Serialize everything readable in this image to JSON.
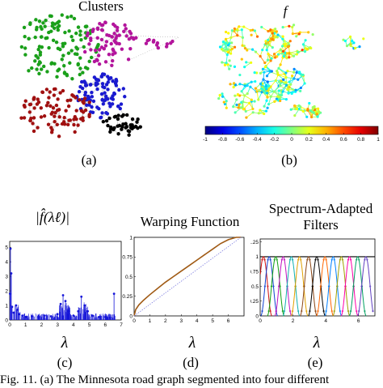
{
  "figure": {
    "panels": [
      {
        "id": "a",
        "title": "Clusters",
        "caption": "(a)"
      },
      {
        "id": "b",
        "title": "f",
        "caption": "(b)",
        "colorbar_ticks": [
          "-1",
          "-0.8",
          "-0.6",
          "-0.4",
          "-0.2",
          "0",
          "0.2",
          "0.4",
          "0.6",
          "0.8",
          "1"
        ]
      },
      {
        "id": "c",
        "title": "|f̂(λℓ)|",
        "caption": "(c)",
        "xlabel": "λ"
      },
      {
        "id": "d",
        "title": "Warping Function",
        "caption": "(d)",
        "xlabel": "λ"
      },
      {
        "id": "e",
        "title_line1": "Spectrum-Adapted",
        "title_line2": "Filters",
        "caption": "(e)",
        "xlabel": "λ"
      }
    ],
    "bottom_text": "Fig. 11. (a) The Minnesota road graph segmented into four different"
  },
  "colors": {
    "cluster_green": "#1aa01a",
    "cluster_magenta": "#b3159c",
    "cluster_blue": "#1a1ad0",
    "cluster_red": "#a01010",
    "cluster_black": "#000000",
    "spectrum_blue": "#1414d8",
    "warp_brown": "#a05a14",
    "warp_dotted": "#8080e0"
  },
  "chart_data": [
    {
      "type": "bar",
      "panel": "c",
      "title": "|f̂(λℓ)|",
      "xlabel": "λ",
      "xlim": [
        0,
        7
      ],
      "ylim": [
        0,
        5.4
      ],
      "xticks": [
        "0",
        "1",
        "2",
        "3",
        "4",
        "5",
        "6",
        "7"
      ],
      "yticks": [
        "0",
        "1",
        "2",
        "3",
        "4",
        "5"
      ],
      "stems": [
        {
          "x": 0.02,
          "y": 1.8
        },
        {
          "x": 0.05,
          "y": 4.9
        },
        {
          "x": 0.1,
          "y": 3.2
        },
        {
          "x": 0.15,
          "y": 0.9
        },
        {
          "x": 0.25,
          "y": 0.5
        },
        {
          "x": 0.4,
          "y": 1.0
        },
        {
          "x": 0.5,
          "y": 0.7
        },
        {
          "x": 0.6,
          "y": 0.4
        },
        {
          "x": 0.8,
          "y": 0.3
        },
        {
          "x": 1.0,
          "y": 0.2
        },
        {
          "x": 1.4,
          "y": 0.25
        },
        {
          "x": 1.8,
          "y": 0.2
        },
        {
          "x": 2.2,
          "y": 0.3
        },
        {
          "x": 2.6,
          "y": 0.25
        },
        {
          "x": 3.0,
          "y": 0.4
        },
        {
          "x": 3.2,
          "y": 1.1
        },
        {
          "x": 3.35,
          "y": 1.7
        },
        {
          "x": 3.5,
          "y": 1.3
        },
        {
          "x": 3.7,
          "y": 0.6
        },
        {
          "x": 4.0,
          "y": 0.3
        },
        {
          "x": 4.3,
          "y": 0.6
        },
        {
          "x": 4.5,
          "y": 1.6
        },
        {
          "x": 4.7,
          "y": 1.0
        },
        {
          "x": 4.9,
          "y": 0.6
        },
        {
          "x": 5.2,
          "y": 0.3
        },
        {
          "x": 5.6,
          "y": 0.2
        },
        {
          "x": 6.0,
          "y": 0.2
        },
        {
          "x": 6.3,
          "y": 0.15
        },
        {
          "x": 6.55,
          "y": 1.8
        }
      ]
    },
    {
      "type": "line",
      "panel": "d",
      "title": "Warping Function",
      "xlabel": "λ",
      "xlim": [
        0,
        7
      ],
      "ylim": [
        0,
        1
      ],
      "xticks": [
        "0",
        "1",
        "2",
        "3",
        "4",
        "5",
        "6"
      ],
      "yticks": [
        "0",
        "0.25",
        "0.5",
        "0.75",
        "1"
      ],
      "series": [
        {
          "x": [
            0,
            0.1,
            0.3,
            0.6,
            1.0,
            1.5,
            2.0,
            2.5,
            3.0,
            3.5,
            4.0,
            4.5,
            5.0,
            5.5,
            6.0,
            6.5,
            6.8
          ],
          "y": [
            0,
            0.08,
            0.14,
            0.2,
            0.27,
            0.35,
            0.43,
            0.5,
            0.57,
            0.64,
            0.71,
            0.78,
            0.85,
            0.92,
            0.97,
            1.0,
            1.0
          ]
        },
        {
          "x": [
            0,
            6.8
          ],
          "y": [
            0,
            1.0
          ]
        }
      ]
    },
    {
      "type": "line",
      "panel": "e",
      "title": "Spectrum-Adapted Filters",
      "xlabel": "λ",
      "xlim": [
        0,
        7
      ],
      "ylim": [
        0,
        1.3
      ],
      "xticks": [
        "0",
        "2",
        "4",
        "6"
      ],
      "yticks": [
        "0",
        "0.25",
        "0.5",
        "0.75",
        "1",
        "1.25"
      ],
      "sum_line": 1.0,
      "filter_centers": [
        0.2,
        0.55,
        0.95,
        1.4,
        1.9,
        2.4,
        2.95,
        3.45,
        3.95,
        4.45,
        4.95,
        5.45,
        5.95,
        6.45
      ]
    }
  ]
}
